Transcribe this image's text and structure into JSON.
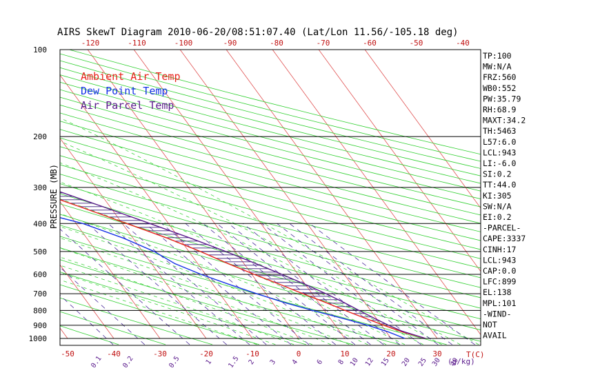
{
  "chart_data": {
    "type": "line",
    "title": "AIRS SkewT Diagram 2010-06-20/08:51:07.40 (Lat/Lon 11.56/-105.18 deg)",
    "ylabel": "PRESSURE (MB)",
    "xlabel_bottom_unit": "T(C)",
    "mixing_ratio_unit": "(g/kg)",
    "pressure_levels": [
      100,
      200,
      300,
      400,
      500,
      600,
      700,
      800,
      900,
      1000
    ],
    "pressure_ticks": [
      "100",
      "200",
      "300",
      "400",
      "500",
      "600",
      "700",
      "800",
      "900",
      "1000"
    ],
    "top_temp_ticks": [
      "-120",
      "-110",
      "-100",
      "-90",
      "-80",
      "-70",
      "-60",
      "-50",
      "-40"
    ],
    "bottom_temp_ticks": [
      "-50",
      "-40",
      "-30",
      "-20",
      "-10",
      "0",
      "10",
      "20",
      "30"
    ],
    "mixing_ratio_ticks": [
      "0.1",
      "0.2",
      "0.5",
      "1",
      "1.5",
      "2",
      "3",
      "4",
      "6",
      "8",
      "10",
      "12",
      "15",
      "20",
      "25",
      "30",
      "40"
    ],
    "legend": [
      {
        "label": "Ambient Air Temp",
        "color": "#e8231c"
      },
      {
        "label": "Dew Point Temp",
        "color": "#1432e6"
      },
      {
        "label": "Air Parcel Temp",
        "color": "#5a1a8c"
      }
    ],
    "series": [
      {
        "name": "Ambient Air Temp",
        "color": "#e8231c",
        "pressure": [
          1000,
          950,
          900,
          850,
          800,
          750,
          700,
          650,
          600,
          550,
          500,
          450,
          400,
          350,
          300,
          275,
          250,
          225,
          200,
          175,
          150,
          125,
          100
        ],
        "temperature": [
          27.5,
          23.5,
          20.5,
          17.5,
          14.5,
          11.5,
          8.0,
          4.5,
          0.5,
          -3.5,
          -7.5,
          -12.5,
          -19.0,
          -26.5,
          -35.5,
          -41.0,
          -47.5,
          -54.5,
          -62.0,
          -70.0,
          -77.5,
          -80.5,
          -79.5
        ]
      },
      {
        "name": "Dew Point Temp",
        "color": "#1432e6",
        "pressure": [
          1000,
          950,
          900,
          850,
          800,
          750,
          700,
          650,
          600,
          550,
          500,
          450,
          400,
          350,
          300,
          275,
          250,
          225,
          200,
          175,
          150,
          125,
          100
        ],
        "temperature": [
          23.0,
          20.5,
          17.0,
          12.5,
          7.5,
          2.5,
          -2.0,
          -6.5,
          -11.0,
          -15.0,
          -17.5,
          -22.0,
          -28.5,
          -40.0,
          -52.0,
          -58.5,
          -66.0,
          -74.0,
          -82.0,
          -88.0,
          -92.0,
          -94.5,
          -97.0
        ]
      },
      {
        "name": "Air Parcel Temp",
        "color": "#5a1a8c",
        "pressure": [
          1000,
          950,
          943,
          900,
          850,
          800,
          750,
          700,
          650,
          600,
          550,
          500,
          450,
          400,
          350,
          300,
          275,
          250,
          225,
          200,
          175,
          150,
          138,
          125,
          100
        ],
        "temperature": [
          27.5,
          24.0,
          23.5,
          21.5,
          19.5,
          17.5,
          15.5,
          13.0,
          10.0,
          6.5,
          2.5,
          -2.0,
          -7.5,
          -14.0,
          -21.5,
          -30.5,
          -36.0,
          -42.0,
          -49.0,
          -57.0,
          -66.0,
          -76.0,
          -81.0,
          -87.0,
          -98.0
        ]
      }
    ],
    "indices": [
      "TP:100",
      "MW:N/A",
      "FRZ:560",
      "WB0:552",
      "PW:35.79",
      "RH:68.9",
      "MAXT:34.2",
      "TH:5463",
      "L57:6.0",
      "LCL:943",
      "LI:-6.0",
      "SI:0.2",
      "TT:44.0",
      "KI:305",
      "SW:N/A",
      "EI:0.2",
      "-PARCEL-",
      "CAPE:3337",
      "CINH:17",
      "LCL:943",
      "CAP:0.0",
      "LFC:899",
      "EL:138",
      "MPL:101",
      "-WIND-",
      "NOT",
      "AVAIL"
    ],
    "grid": true
  }
}
